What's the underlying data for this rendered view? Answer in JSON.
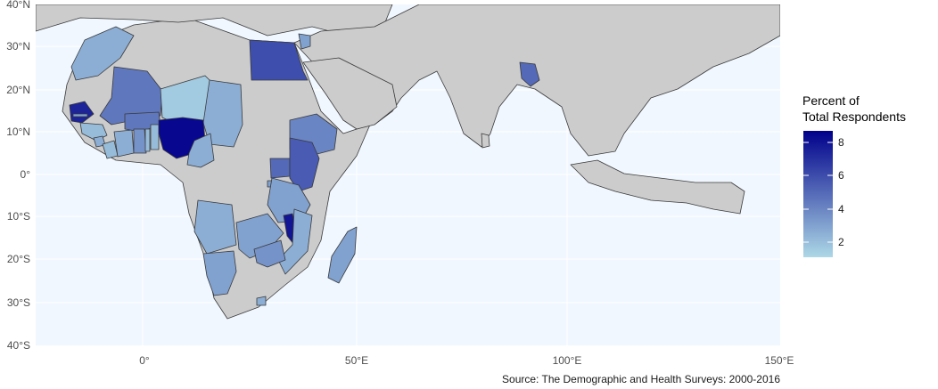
{
  "map": {
    "background_color": "#f0f7ff",
    "land_color": "#cccccc",
    "border_color": "#3a3a3a",
    "y_axis_labels": [
      "40°N",
      "30°N",
      "20°N",
      "10°N",
      "0°",
      "10°S",
      "20°S",
      "30°S",
      "40°S"
    ],
    "x_axis_labels": [
      "0°",
      "50°E",
      "100°E",
      "150°E"
    ],
    "source": "Source: The Demographic and Health Surveys: 2000-2016"
  },
  "legend": {
    "title_line1": "Percent of",
    "title_line2": "Total Respondents",
    "ticks": [
      "8",
      "6",
      "4",
      "2"
    ],
    "color_low": "#add8e6",
    "color_high": "#00008b"
  },
  "regions": [
    {
      "name": "Nigeria",
      "value": 8.5
    },
    {
      "name": "Malawi",
      "value": 8.0
    },
    {
      "name": "Senegal",
      "value": 7.5
    },
    {
      "name": "Egypt",
      "value": 6.0
    },
    {
      "name": "Kenya",
      "value": 5.5
    },
    {
      "name": "Bangladesh",
      "value": 5.0
    },
    {
      "name": "Uganda",
      "value": 5.0
    },
    {
      "name": "Mali",
      "value": 4.5
    },
    {
      "name": "Burkina Faso",
      "value": 4.5
    },
    {
      "name": "Ethiopia",
      "value": 4.0
    },
    {
      "name": "Tanzania",
      "value": 3.0
    },
    {
      "name": "Zimbabwe",
      "value": 3.5
    },
    {
      "name": "Zambia",
      "value": 3.0
    },
    {
      "name": "Namibia",
      "value": 3.0
    },
    {
      "name": "Ghana",
      "value": 3.5
    },
    {
      "name": "Morocco",
      "value": 2.5
    },
    {
      "name": "Angola",
      "value": 2.5
    },
    {
      "name": "Mozambique",
      "value": 2.5
    },
    {
      "name": "Madagascar",
      "value": 3.0
    },
    {
      "name": "Cameroon",
      "value": 2.5
    },
    {
      "name": "Chad",
      "value": 2.5
    },
    {
      "name": "Niger",
      "value": 1.5
    },
    {
      "name": "Jordan",
      "value": 3.0
    },
    {
      "name": "Guinea",
      "value": 2.0
    },
    {
      "name": "Sierra Leone",
      "value": 2.5
    },
    {
      "name": "Liberia",
      "value": 2.0
    },
    {
      "name": "Cote d'Ivoire",
      "value": 2.5
    },
    {
      "name": "Benin",
      "value": 2.0
    },
    {
      "name": "Togo",
      "value": 2.0
    },
    {
      "name": "Rwanda",
      "value": 3.0
    },
    {
      "name": "Lesotho",
      "value": 2.5
    },
    {
      "name": "Gambia",
      "value": 3.0
    }
  ]
}
